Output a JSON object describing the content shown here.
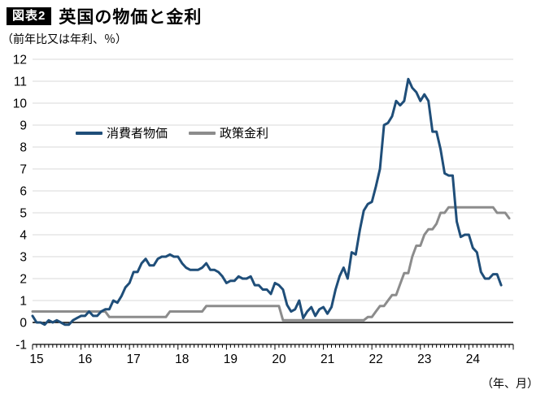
{
  "header": {
    "tag": "図表2",
    "title": "英国の物価と金利"
  },
  "notes": {
    "y_unit": "（前年比又は年利、％）",
    "x_unit": "（年、月）"
  },
  "chart_data": {
    "type": "line",
    "title": "英国の物価と金利",
    "y_axis_note": "（前年比又は年利、％）",
    "x_axis_note": "（年、月）",
    "ylim": [
      -1,
      12
    ],
    "ytick_labels": [
      "12",
      "11",
      "10",
      "9",
      "8",
      "7",
      "6",
      "5",
      "4",
      "3",
      "2",
      "1",
      "0",
      "-1"
    ],
    "xtick_year_labels": [
      "15",
      "16",
      "17",
      "18",
      "19",
      "20",
      "21",
      "22",
      "23",
      "24"
    ],
    "x_start_month": "2015-01",
    "months_total": 119,
    "grid": true,
    "zero_line": true,
    "legend_position": "inside-upper-left",
    "colors": {
      "grid": "#d9d9d9",
      "axis": "#000000",
      "background": "#ffffff"
    },
    "series": [
      {
        "name": "消費者物価",
        "color": "#1f4e79",
        "start_month": "2015-01",
        "values": [
          0.3,
          0.0,
          0.0,
          -0.1,
          0.1,
          0.0,
          0.1,
          0.0,
          -0.1,
          -0.1,
          0.1,
          0.2,
          0.3,
          0.3,
          0.5,
          0.3,
          0.3,
          0.5,
          0.6,
          0.6,
          1.0,
          0.9,
          1.2,
          1.6,
          1.8,
          2.3,
          2.3,
          2.7,
          2.9,
          2.6,
          2.6,
          2.9,
          3.0,
          3.0,
          3.1,
          3.0,
          3.0,
          2.7,
          2.5,
          2.4,
          2.4,
          2.4,
          2.5,
          2.7,
          2.4,
          2.4,
          2.3,
          2.1,
          1.8,
          1.9,
          1.9,
          2.1,
          2.0,
          2.0,
          2.1,
          1.7,
          1.7,
          1.5,
          1.5,
          1.3,
          1.8,
          1.7,
          1.5,
          0.8,
          0.5,
          0.6,
          1.0,
          0.2,
          0.5,
          0.7,
          0.3,
          0.6,
          0.7,
          0.4,
          0.7,
          1.5,
          2.1,
          2.5,
          2.0,
          3.2,
          3.1,
          4.2,
          5.1,
          5.4,
          5.5,
          6.2,
          7.0,
          9.0,
          9.1,
          9.4,
          10.1,
          9.9,
          10.1,
          11.1,
          10.7,
          10.5,
          10.1,
          10.4,
          10.1,
          8.7,
          8.7,
          7.9,
          6.8,
          6.7,
          6.7,
          4.6,
          3.9,
          4.0,
          4.0,
          3.4,
          3.2,
          2.3,
          2.0,
          2.0,
          2.2,
          2.2,
          1.7
        ]
      },
      {
        "name": "政策金利",
        "color": "#8c8c8c",
        "start_month": "2015-01",
        "values": [
          0.5,
          0.5,
          0.5,
          0.5,
          0.5,
          0.5,
          0.5,
          0.5,
          0.5,
          0.5,
          0.5,
          0.5,
          0.5,
          0.5,
          0.5,
          0.5,
          0.5,
          0.5,
          0.5,
          0.25,
          0.25,
          0.25,
          0.25,
          0.25,
          0.25,
          0.25,
          0.25,
          0.25,
          0.25,
          0.25,
          0.25,
          0.25,
          0.25,
          0.25,
          0.5,
          0.5,
          0.5,
          0.5,
          0.5,
          0.5,
          0.5,
          0.5,
          0.5,
          0.75,
          0.75,
          0.75,
          0.75,
          0.75,
          0.75,
          0.75,
          0.75,
          0.75,
          0.75,
          0.75,
          0.75,
          0.75,
          0.75,
          0.75,
          0.75,
          0.75,
          0.75,
          0.75,
          0.1,
          0.1,
          0.1,
          0.1,
          0.1,
          0.1,
          0.1,
          0.1,
          0.1,
          0.1,
          0.1,
          0.1,
          0.1,
          0.1,
          0.1,
          0.1,
          0.1,
          0.1,
          0.1,
          0.1,
          0.1,
          0.25,
          0.25,
          0.5,
          0.75,
          0.75,
          1.0,
          1.25,
          1.25,
          1.75,
          2.25,
          2.25,
          3.0,
          3.5,
          3.5,
          4.0,
          4.25,
          4.25,
          4.5,
          5.0,
          5.0,
          5.25,
          5.25,
          5.25,
          5.25,
          5.25,
          5.25,
          5.25,
          5.25,
          5.25,
          5.25,
          5.25,
          5.25,
          5.0,
          5.0,
          5.0,
          4.75
        ]
      }
    ]
  }
}
